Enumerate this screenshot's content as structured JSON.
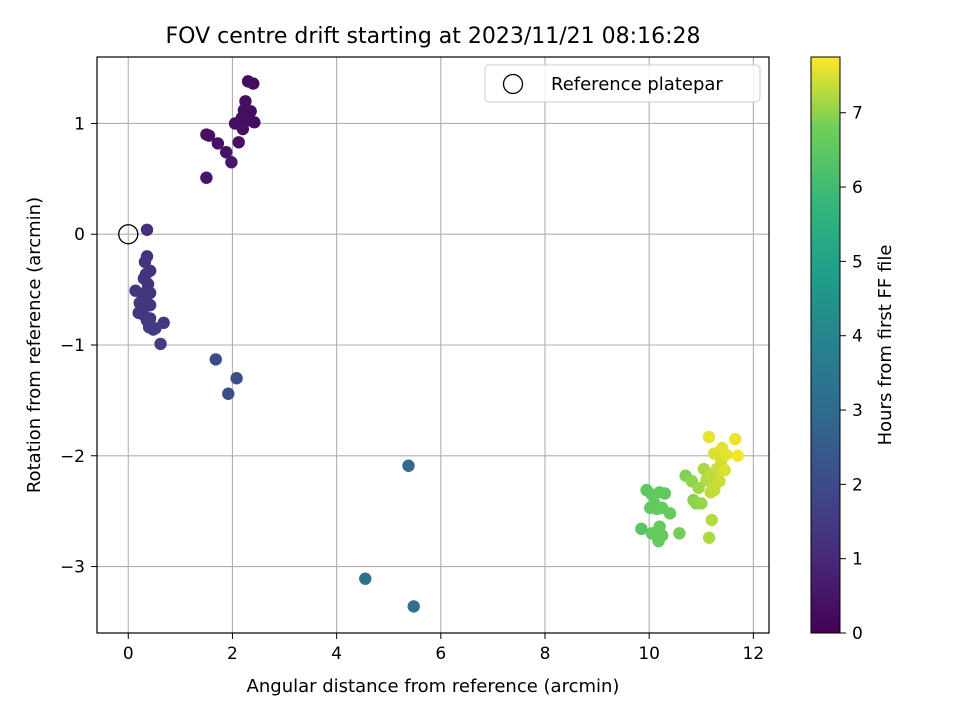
{
  "chart_data": {
    "type": "scatter",
    "title": "FOV centre drift starting at 2023/11/21 08:16:28",
    "xlabel": "Angular distance from reference (arcmin)",
    "ylabel": "Rotation from reference (arcmin)",
    "xlim": [
      -0.6,
      12.3
    ],
    "ylim": [
      -3.6,
      1.6
    ],
    "xticks": [
      0,
      2,
      4,
      6,
      8,
      10,
      12
    ],
    "yticks": [
      -3,
      -2,
      -1,
      0,
      1
    ],
    "xtick_labels": [
      "0",
      "2",
      "4",
      "6",
      "8",
      "10",
      "12"
    ],
    "ytick_labels": [
      "−3",
      "−2",
      "−1",
      "0",
      "1"
    ],
    "grid": true,
    "legend": {
      "position": "top-right",
      "label": "Reference platepar"
    },
    "reference_point": {
      "x": 0,
      "y": 0
    },
    "colorbar": {
      "label": "Hours from first FF file",
      "range": [
        0,
        7.75
      ],
      "ticks": [
        0,
        1,
        2,
        3,
        4,
        5,
        6,
        7
      ],
      "tick_labels": [
        "0",
        "1",
        "2",
        "3",
        "4",
        "5",
        "6",
        "7"
      ],
      "colormap": "viridis"
    },
    "points": [
      {
        "x": 2.3,
        "y": 1.38,
        "t": 0.3
      },
      {
        "x": 2.4,
        "y": 1.36,
        "t": 0.3
      },
      {
        "x": 2.25,
        "y": 1.2,
        "t": 0.32
      },
      {
        "x": 2.22,
        "y": 1.12,
        "t": 0.33
      },
      {
        "x": 2.35,
        "y": 1.11,
        "t": 0.34
      },
      {
        "x": 2.18,
        "y": 1.05,
        "t": 0.35
      },
      {
        "x": 2.28,
        "y": 1.06,
        "t": 0.35
      },
      {
        "x": 2.05,
        "y": 1.0,
        "t": 0.36
      },
      {
        "x": 2.15,
        "y": 1.02,
        "t": 0.36
      },
      {
        "x": 2.42,
        "y": 1.01,
        "t": 0.36
      },
      {
        "x": 2.32,
        "y": 1.03,
        "t": 0.36
      },
      {
        "x": 2.2,
        "y": 0.95,
        "t": 0.37
      },
      {
        "x": 2.12,
        "y": 0.83,
        "t": 0.38
      },
      {
        "x": 1.5,
        "y": 0.9,
        "t": 0.4
      },
      {
        "x": 1.55,
        "y": 0.89,
        "t": 0.4
      },
      {
        "x": 1.72,
        "y": 0.82,
        "t": 0.42
      },
      {
        "x": 1.88,
        "y": 0.74,
        "t": 0.45
      },
      {
        "x": 1.98,
        "y": 0.65,
        "t": 0.5
      },
      {
        "x": 1.5,
        "y": 0.51,
        "t": 0.55
      },
      {
        "x": 0.36,
        "y": 0.04,
        "t": 1.2
      },
      {
        "x": 0.36,
        "y": -0.2,
        "t": 1.25
      },
      {
        "x": 0.32,
        "y": -0.25,
        "t": 1.28
      },
      {
        "x": 0.42,
        "y": -0.33,
        "t": 1.3
      },
      {
        "x": 0.34,
        "y": -0.36,
        "t": 1.3
      },
      {
        "x": 0.3,
        "y": -0.4,
        "t": 1.32
      },
      {
        "x": 0.38,
        "y": -0.45,
        "t": 1.33
      },
      {
        "x": 0.14,
        "y": -0.51,
        "t": 1.35
      },
      {
        "x": 0.34,
        "y": -0.52,
        "t": 1.35
      },
      {
        "x": 0.42,
        "y": -0.53,
        "t": 1.36
      },
      {
        "x": 0.28,
        "y": -0.58,
        "t": 1.38
      },
      {
        "x": 0.36,
        "y": -0.62,
        "t": 1.4
      },
      {
        "x": 0.22,
        "y": -0.62,
        "t": 1.4
      },
      {
        "x": 0.42,
        "y": -0.64,
        "t": 1.41
      },
      {
        "x": 0.26,
        "y": -0.68,
        "t": 1.42
      },
      {
        "x": 0.2,
        "y": -0.71,
        "t": 1.43
      },
      {
        "x": 0.3,
        "y": -0.73,
        "t": 1.44
      },
      {
        "x": 0.42,
        "y": -0.76,
        "t": 1.45
      },
      {
        "x": 0.36,
        "y": -0.78,
        "t": 1.46
      },
      {
        "x": 0.68,
        "y": -0.8,
        "t": 1.48
      },
      {
        "x": 0.4,
        "y": -0.84,
        "t": 1.5
      },
      {
        "x": 0.48,
        "y": -0.86,
        "t": 1.52
      },
      {
        "x": 0.52,
        "y": -0.85,
        "t": 1.53
      },
      {
        "x": 0.62,
        "y": -0.99,
        "t": 1.6
      },
      {
        "x": 1.68,
        "y": -1.13,
        "t": 2.0
      },
      {
        "x": 2.08,
        "y": -1.3,
        "t": 2.1
      },
      {
        "x": 1.92,
        "y": -1.44,
        "t": 2.05
      },
      {
        "x": 5.38,
        "y": -2.09,
        "t": 3.0
      },
      {
        "x": 4.55,
        "y": -3.11,
        "t": 3.3
      },
      {
        "x": 5.48,
        "y": -3.36,
        "t": 3.2
      },
      {
        "x": 9.85,
        "y": -2.66,
        "t": 6.4
      },
      {
        "x": 9.95,
        "y": -2.31,
        "t": 6.45
      },
      {
        "x": 10.05,
        "y": -2.35,
        "t": 6.5
      },
      {
        "x": 10.1,
        "y": -2.43,
        "t": 6.52
      },
      {
        "x": 10.02,
        "y": -2.47,
        "t": 6.53
      },
      {
        "x": 10.2,
        "y": -2.33,
        "t": 6.55
      },
      {
        "x": 10.3,
        "y": -2.34,
        "t": 6.57
      },
      {
        "x": 10.15,
        "y": -2.48,
        "t": 6.58
      },
      {
        "x": 10.25,
        "y": -2.47,
        "t": 6.6
      },
      {
        "x": 10.4,
        "y": -2.52,
        "t": 6.62
      },
      {
        "x": 10.05,
        "y": -2.7,
        "t": 6.55
      },
      {
        "x": 10.2,
        "y": -2.64,
        "t": 6.6
      },
      {
        "x": 10.15,
        "y": -2.73,
        "t": 6.62
      },
      {
        "x": 10.25,
        "y": -2.72,
        "t": 6.63
      },
      {
        "x": 10.18,
        "y": -2.77,
        "t": 6.64
      },
      {
        "x": 10.58,
        "y": -2.7,
        "t": 6.8
      },
      {
        "x": 10.7,
        "y": -2.18,
        "t": 6.9
      },
      {
        "x": 10.82,
        "y": -2.23,
        "t": 7.0
      },
      {
        "x": 10.85,
        "y": -2.4,
        "t": 6.95
      },
      {
        "x": 10.9,
        "y": -2.43,
        "t": 6.97
      },
      {
        "x": 11.0,
        "y": -2.43,
        "t": 7.05
      },
      {
        "x": 10.95,
        "y": -2.29,
        "t": 7.1
      },
      {
        "x": 11.05,
        "y": -2.12,
        "t": 7.2
      },
      {
        "x": 11.1,
        "y": -2.22,
        "t": 7.25
      },
      {
        "x": 11.18,
        "y": -2.17,
        "t": 7.3
      },
      {
        "x": 11.22,
        "y": -2.28,
        "t": 7.32
      },
      {
        "x": 11.18,
        "y": -2.33,
        "t": 7.34
      },
      {
        "x": 11.25,
        "y": -2.31,
        "t": 7.36
      },
      {
        "x": 11.3,
        "y": -2.12,
        "t": 7.4
      },
      {
        "x": 11.35,
        "y": -2.23,
        "t": 7.42
      },
      {
        "x": 11.38,
        "y": -2.05,
        "t": 7.45
      },
      {
        "x": 11.25,
        "y": -1.98,
        "t": 7.5
      },
      {
        "x": 11.4,
        "y": -1.93,
        "t": 7.55
      },
      {
        "x": 11.45,
        "y": -2.13,
        "t": 7.52
      },
      {
        "x": 11.48,
        "y": -1.99,
        "t": 7.58
      },
      {
        "x": 11.15,
        "y": -1.83,
        "t": 7.6
      },
      {
        "x": 11.65,
        "y": -1.85,
        "t": 7.65
      },
      {
        "x": 11.7,
        "y": -2.0,
        "t": 7.7
      },
      {
        "x": 11.15,
        "y": -2.74,
        "t": 7.2
      },
      {
        "x": 11.2,
        "y": -2.58,
        "t": 7.25
      }
    ]
  }
}
